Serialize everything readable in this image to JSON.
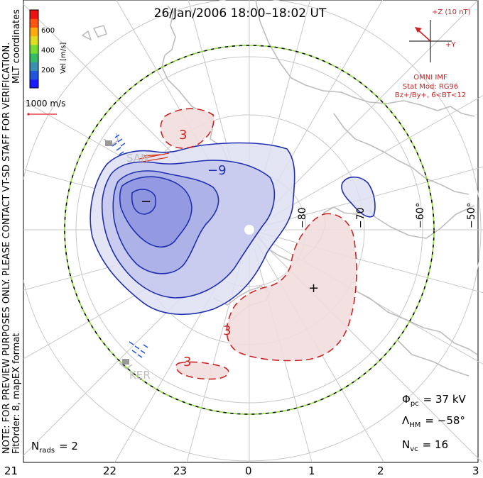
{
  "title": "26/Jan/2006 18:00–18:02 UT",
  "side_note": "NOTE: FOR PREVIEW PURPOSES ONLY. PLEASE CONTACT VT-SD STAFF FOR VERIFICATION.",
  "coord_label": "MLT coordinates",
  "fit_label": "FitOrder: 8, mapEX format",
  "colorbar": {
    "label": "Vel [m/s]",
    "ticks": [
      "600",
      "400",
      "200"
    ],
    "colors": [
      "#1a1aff",
      "#2255dd",
      "#3a8fb0",
      "#33bb66",
      "#77dd33",
      "#dddd22",
      "#ffaa11",
      "#ff5511",
      "#ee1111"
    ]
  },
  "velocity_scale": "1000 m/s",
  "imf": {
    "z_label": "+Z (10 nT)",
    "y_label": "+Y",
    "source": "OMNI IMF",
    "stat_mod": "Stat Mod: RG96",
    "condition": "Bz+/By+, 6<BT<12"
  },
  "stats": {
    "phi_sym": "Φ",
    "phi_sub": "pc",
    "phi_val": "= 37 kV",
    "lambda_sym": "Λ",
    "lambda_sub": "HM",
    "lambda_val": "= −58°",
    "nvc_sym": "N",
    "nvc_sub": "vc",
    "nvc_val": "= 16",
    "nrads_sym": "N",
    "nrads_sub": "rads",
    "nrads_val": "= 2"
  },
  "radars": [
    "SAN",
    "KER"
  ],
  "lat_labels": [
    "−80",
    "−70",
    "−60°",
    "−50°"
  ],
  "mlt_labels": [
    "21",
    "22",
    "23",
    "0",
    "1",
    "2",
    "3"
  ],
  "contours": {
    "neg_label": "−9",
    "pos_label_1": "3",
    "pos_label_2": "3",
    "pos_label_3": "3",
    "min_marker": "−",
    "max_marker": "+"
  },
  "colors": {
    "negative": "#1f2fb0",
    "positive": "#cc2222",
    "neg_fill": "#dfe1f2",
    "neg_fill_2": "#c4c8ec",
    "neg_fill_3": "#a9aee5",
    "neg_fill_4": "#8e95df",
    "pos_fill": "#f2dede",
    "coast": "#bdbdbd",
    "grid": "#c8c8c8",
    "hmb_green": "#88dd33"
  }
}
